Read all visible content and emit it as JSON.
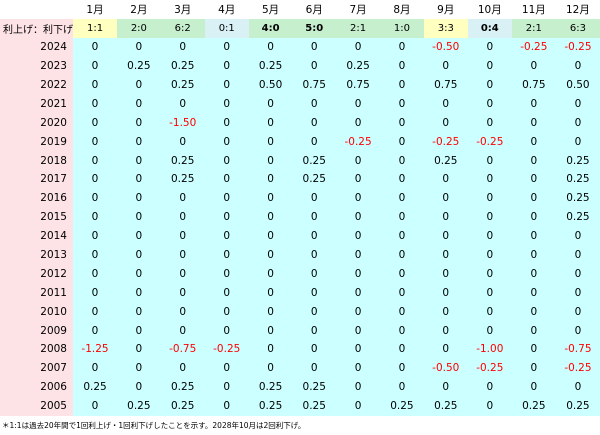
{
  "chart_data": {
    "type": "table",
    "corner_label": "",
    "ratio_label": "利上げ：利下げ",
    "months": [
      "1月",
      "2月",
      "3月",
      "4月",
      "5月",
      "6月",
      "7月",
      "8月",
      "9月",
      "10月",
      "11月",
      "12月"
    ],
    "ratios": [
      "1:1",
      "2:0",
      "6:2",
      "0:1",
      "4:0",
      "5:0",
      "2:1",
      "1:0",
      "3:3",
      "0:4",
      "2:1",
      "6:3"
    ],
    "ratio_colors": [
      "#ffffc0",
      "#c6efce",
      "#c6efce",
      "#d9f1f5",
      "#c6efce",
      "#c6efce",
      "#c6efce",
      "#c6efce",
      "#ffffc0",
      "#d9f1f5",
      "#c6efce",
      "#c6efce"
    ],
    "ratio_bold": [
      false,
      false,
      false,
      false,
      true,
      true,
      false,
      false,
      false,
      true,
      false,
      false
    ],
    "rows": [
      {
        "year": "2024",
        "values": [
          "0",
          "0",
          "0",
          "0",
          "0",
          "0",
          "0",
          "0",
          "-0.50",
          "0",
          "-0.25",
          "-0.25"
        ]
      },
      {
        "year": "2023",
        "values": [
          "0",
          "0.25",
          "0.25",
          "0",
          "0.25",
          "0",
          "0.25",
          "0",
          "0",
          "0",
          "0",
          "0"
        ]
      },
      {
        "year": "2022",
        "values": [
          "0",
          "0",
          "0.25",
          "0",
          "0.50",
          "0.75",
          "0.75",
          "0",
          "0.75",
          "0",
          "0.75",
          "0.50"
        ]
      },
      {
        "year": "2021",
        "values": [
          "0",
          "0",
          "0",
          "0",
          "0",
          "0",
          "0",
          "0",
          "0",
          "0",
          "0",
          "0"
        ]
      },
      {
        "year": "2020",
        "values": [
          "0",
          "0",
          "-1.50",
          "0",
          "0",
          "0",
          "0",
          "0",
          "0",
          "0",
          "0",
          "0"
        ]
      },
      {
        "year": "2019",
        "values": [
          "0",
          "0",
          "0",
          "0",
          "0",
          "0",
          "-0.25",
          "0",
          "-0.25",
          "-0.25",
          "0",
          "0"
        ]
      },
      {
        "year": "2018",
        "values": [
          "0",
          "0",
          "0.25",
          "0",
          "0",
          "0.25",
          "0",
          "0",
          "0.25",
          "0",
          "0",
          "0.25"
        ]
      },
      {
        "year": "2017",
        "values": [
          "0",
          "0",
          "0.25",
          "0",
          "0",
          "0.25",
          "0",
          "0",
          "0",
          "0",
          "0",
          "0.25"
        ]
      },
      {
        "year": "2016",
        "values": [
          "0",
          "0",
          "0",
          "0",
          "0",
          "0",
          "0",
          "0",
          "0",
          "0",
          "0",
          "0.25"
        ]
      },
      {
        "year": "2015",
        "values": [
          "0",
          "0",
          "0",
          "0",
          "0",
          "0",
          "0",
          "0",
          "0",
          "0",
          "0",
          "0.25"
        ]
      },
      {
        "year": "2014",
        "values": [
          "0",
          "0",
          "0",
          "0",
          "0",
          "0",
          "0",
          "0",
          "0",
          "0",
          "0",
          "0"
        ]
      },
      {
        "year": "2013",
        "values": [
          "0",
          "0",
          "0",
          "0",
          "0",
          "0",
          "0",
          "0",
          "0",
          "0",
          "0",
          "0"
        ]
      },
      {
        "year": "2012",
        "values": [
          "0",
          "0",
          "0",
          "0",
          "0",
          "0",
          "0",
          "0",
          "0",
          "0",
          "0",
          "0"
        ]
      },
      {
        "year": "2011",
        "values": [
          "0",
          "0",
          "0",
          "0",
          "0",
          "0",
          "0",
          "0",
          "0",
          "0",
          "0",
          "0"
        ]
      },
      {
        "year": "2010",
        "values": [
          "0",
          "0",
          "0",
          "0",
          "0",
          "0",
          "0",
          "0",
          "0",
          "0",
          "0",
          "0"
        ]
      },
      {
        "year": "2009",
        "values": [
          "0",
          "0",
          "0",
          "0",
          "0",
          "0",
          "0",
          "0",
          "0",
          "0",
          "0",
          "0"
        ]
      },
      {
        "year": "2008",
        "values": [
          "-1.25",
          "0",
          "-0.75",
          "-0.25",
          "0",
          "0",
          "0",
          "0",
          "0",
          "-1.00",
          "0",
          "-0.75"
        ]
      },
      {
        "year": "2007",
        "values": [
          "0",
          "0",
          "0",
          "0",
          "0",
          "0",
          "0",
          "0",
          "-0.50",
          "-0.25",
          "0",
          "-0.25"
        ]
      },
      {
        "year": "2006",
        "values": [
          "0.25",
          "0",
          "0.25",
          "0",
          "0.25",
          "0.25",
          "0",
          "0",
          "0",
          "0",
          "0",
          "0"
        ]
      },
      {
        "year": "2005",
        "values": [
          "0",
          "0.25",
          "0.25",
          "0",
          "0.25",
          "0.25",
          "0",
          "0.25",
          "0.25",
          "0",
          "0.25",
          "0.25"
        ]
      }
    ],
    "negative_color": "#ff0000",
    "cell_color": "#ccffff",
    "year_color": "#fde2e6",
    "footnote": "＊1:1は過去20年間で1回利上げ・1回利下げしたことを示す。2028年10月は2回利下げ。"
  }
}
